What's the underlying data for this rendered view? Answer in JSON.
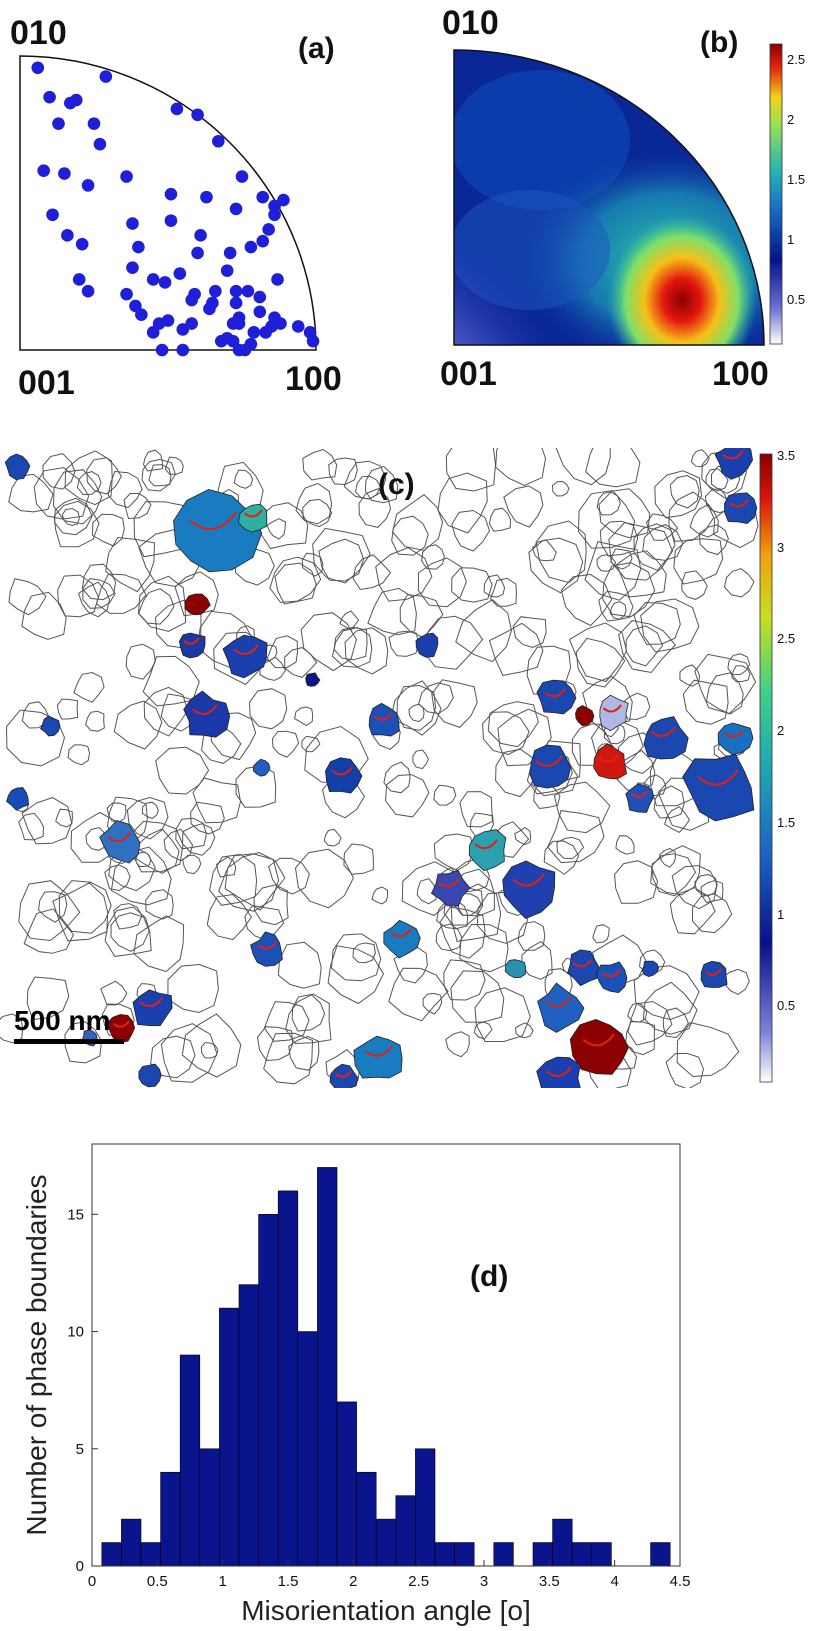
{
  "panels": {
    "a": {
      "label": "(a)",
      "corners": {
        "top": "010",
        "bottom_left": "001",
        "bottom_right": "100"
      },
      "point_color": "#1f1fd8"
    },
    "b": {
      "label": "(b)",
      "corners": {
        "top": "010",
        "bottom_left": "001",
        "bottom_right": "100"
      },
      "colorbar_ticks": [
        "2.5",
        "2",
        "1.5",
        "1",
        "0.5"
      ]
    },
    "c": {
      "label": "(c)",
      "scalebar_label": "500 nm",
      "colorbar_ticks": [
        "3.5",
        "3",
        "2.5",
        "2",
        "1.5",
        "1",
        "0.5"
      ]
    },
    "d": {
      "label": "(d)"
    }
  },
  "chart_data": [
    {
      "type": "scatter",
      "panel": "a",
      "x": [
        0.06,
        0.29,
        0.1,
        0.17,
        0.19,
        0.53,
        0.6,
        0.25,
        0.13,
        0.27,
        0.67,
        0.08,
        0.75,
        0.15,
        0.36,
        0.23,
        0.82,
        0.86,
        0.63,
        0.73,
        0.51,
        0.89,
        0.11,
        0.86,
        0.51,
        0.38,
        0.84,
        0.82,
        0.16,
        0.61,
        0.78,
        0.21,
        0.4,
        0.71,
        0.6,
        0.38,
        0.7,
        0.54,
        0.2,
        0.45,
        0.49,
        0.87,
        0.23,
        0.73,
        0.66,
        0.77,
        0.36,
        0.59,
        0.81,
        0.58,
        0.73,
        0.65,
        0.39,
        0.41,
        0.64,
        0.81,
        0.74,
        0.5,
        0.58,
        0.86,
        0.72,
        0.88,
        0.74,
        0.47,
        0.94,
        0.85,
        0.55,
        0.45,
        0.83,
        0.79,
        0.98,
        0.7,
        0.72,
        0.68,
        0.99,
        0.78,
        0.48,
        0.76,
        0.55,
        0.74
      ],
      "y": [
        0.96,
        0.93,
        0.86,
        0.84,
        0.85,
        0.82,
        0.8,
        0.77,
        0.77,
        0.7,
        0.71,
        0.61,
        0.59,
        0.6,
        0.59,
        0.56,
        0.52,
        0.49,
        0.52,
        0.48,
        0.53,
        0.51,
        0.46,
        0.46,
        0.44,
        0.43,
        0.41,
        0.37,
        0.39,
        0.39,
        0.35,
        0.36,
        0.35,
        0.33,
        0.33,
        0.28,
        0.27,
        0.26,
        0.24,
        0.24,
        0.23,
        0.24,
        0.2,
        0.2,
        0.2,
        0.2,
        0.19,
        0.19,
        0.18,
        0.17,
        0.16,
        0.16,
        0.15,
        0.12,
        0.14,
        0.13,
        0.11,
        0.1,
        0.09,
        0.11,
        0.09,
        0.09,
        0.09,
        0.09,
        0.08,
        0.08,
        0.07,
        0.06,
        0.06,
        0.06,
        0.06,
        0.04,
        0.03,
        0.03,
        0.03,
        0.02,
        0.0,
        0.0,
        0.0,
        0.0
      ]
    },
    {
      "type": "bar",
      "panel": "d",
      "x": [
        0.15,
        0.3,
        0.45,
        0.6,
        0.75,
        0.9,
        1.05,
        1.2,
        1.35,
        1.5,
        1.65,
        1.8,
        1.95,
        2.1,
        2.25,
        2.4,
        2.55,
        2.7,
        2.85,
        3.0,
        3.15,
        3.3,
        3.45,
        3.6,
        3.75,
        3.9,
        4.05,
        4.2,
        4.35
      ],
      "values": [
        1,
        2,
        1,
        4,
        9,
        5,
        11,
        12,
        15,
        16,
        10,
        17,
        7,
        4,
        2,
        3,
        5,
        1,
        1,
        0,
        1,
        0,
        1,
        2,
        1,
        1,
        0,
        0,
        1
      ],
      "xlabel": "Misorientation angle [o]",
      "ylabel": "Number of phase boundaries",
      "xlim": [
        0,
        4.5
      ],
      "ylim": [
        0,
        18
      ],
      "xticks": [
        "0",
        "0.5",
        "1",
        "1.5",
        "2",
        "2.5",
        "3",
        "3.5",
        "4",
        "4.5"
      ],
      "yticks": [
        "0",
        "5",
        "10",
        "15"
      ],
      "bar_color": "#0a148c",
      "grid": false
    }
  ]
}
